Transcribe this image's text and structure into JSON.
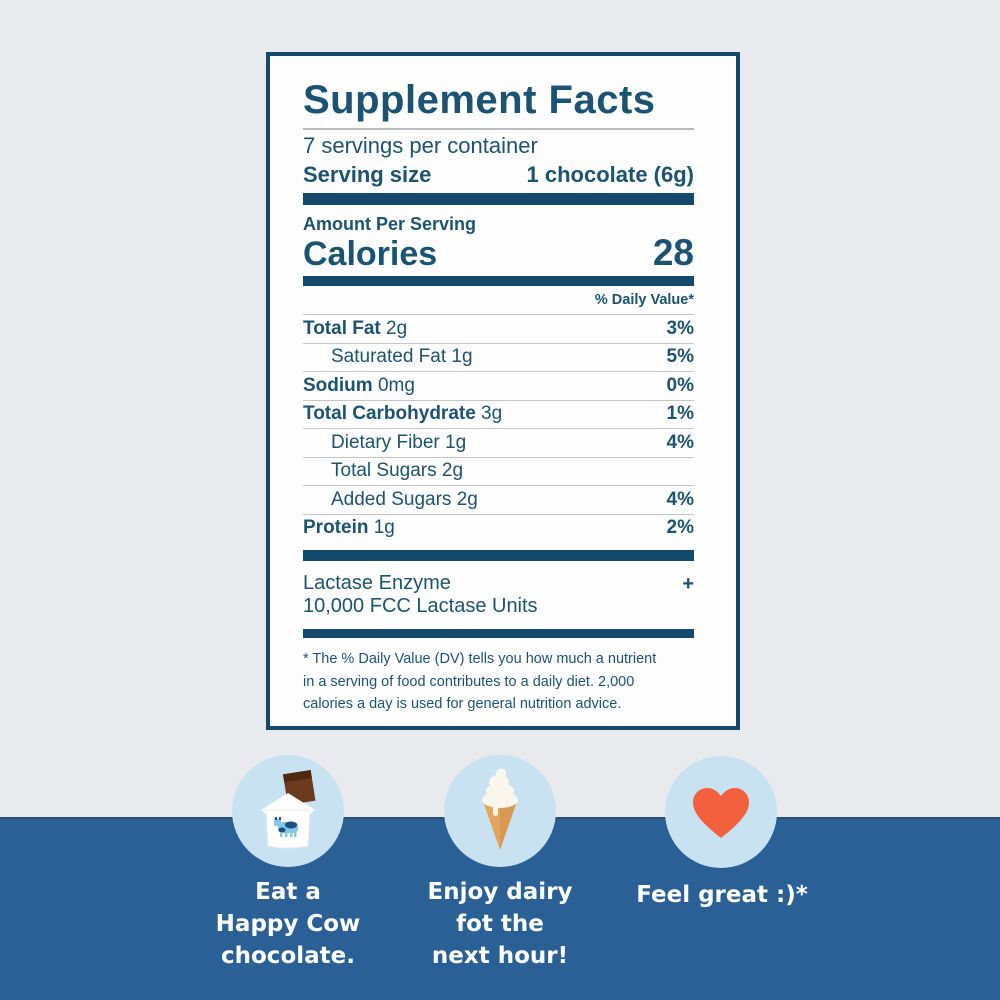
{
  "label": {
    "title": "Supplement Facts",
    "servings_per_container": "7 servings per container",
    "serving_size_label": "Serving size",
    "serving_size_value": "1 chocolate (6g)",
    "amount_per_serving": "Amount Per Serving",
    "calories_label": "Calories",
    "calories_value": "28",
    "daily_value_header": "% Daily Value*",
    "rows": [
      {
        "name": "Total Fat",
        "amount": "2g",
        "dv": "3%",
        "bold": true,
        "indent": false
      },
      {
        "name": "Saturated Fat",
        "amount": "1g",
        "dv": "5%",
        "bold": false,
        "indent": true
      },
      {
        "name": "Sodium",
        "amount": "0mg",
        "dv": "0%",
        "bold": true,
        "indent": false
      },
      {
        "name": "Total Carbohydrate",
        "amount": "3g",
        "dv": "1%",
        "bold": true,
        "indent": false
      },
      {
        "name": "Dietary Fiber",
        "amount": "1g",
        "dv": "4%",
        "bold": false,
        "indent": true
      },
      {
        "name": "Total Sugars",
        "amount": "2g",
        "dv": "",
        "bold": false,
        "indent": true
      },
      {
        "name": "Added Sugars",
        "amount": "2g",
        "dv": "4%",
        "bold": false,
        "indent": true
      },
      {
        "name": "Protein",
        "amount": "1g",
        "dv": "2%",
        "bold": true,
        "indent": false
      }
    ],
    "enzyme": {
      "line1": "Lactase Enzyme",
      "line2": "10,000 FCC Lactase Units",
      "dv_symbol": "+"
    },
    "footnote": "* The % Daily Value (DV) tells you how much a nutrient\nin a serving of food contributes to a daily diet. 2,000\ncalories a day is used for general nutrition advice."
  },
  "benefits": [
    {
      "icon": "chocolate-wrapper-icon",
      "caption": "Eat a\nHappy Cow\nchocolate."
    },
    {
      "icon": "ice-cream-cone-icon",
      "caption": "Enjoy dairy\nfot the\nnext hour!"
    },
    {
      "icon": "heart-icon",
      "caption": "Feel great :)*"
    }
  ],
  "colors": {
    "background": "#e9eaee",
    "card": "#fdfdfe",
    "navy_text": "#1b5375",
    "bar_navy": "#14496b",
    "band_blue": "#2a6095",
    "circle_blue": "#c9e2f2",
    "heart_orange": "#f2603e",
    "cone_tan": "#e2a55c",
    "cream_white": "#fbf7ec",
    "chocolate_brown": "#6b3a1e",
    "cow_blue": "#85c6ea",
    "cow_patch": "#1d5080"
  }
}
